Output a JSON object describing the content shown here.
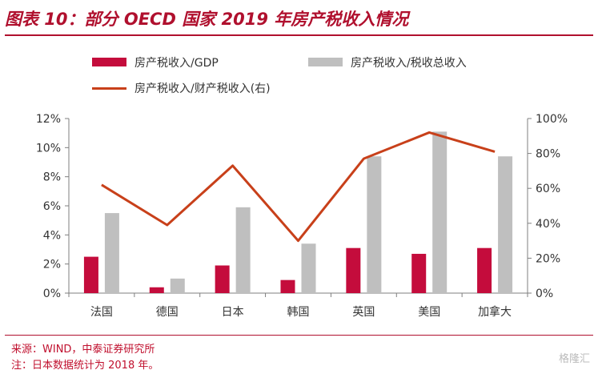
{
  "title": "图表 10：部分 OECD 国家 2019 年房产税收入情况",
  "legend": {
    "series_gdp": "房产税收入/GDP",
    "series_tax": "房产税收入/税收总收入",
    "series_fiscal": "房产税收入/财产税收入(右)"
  },
  "source": {
    "line1": "来源：WIND，中泰证券研究所",
    "line2": "注：日本数据统计为 2018 年。"
  },
  "watermark": "格隆汇",
  "colors": {
    "accent": "#b0102e",
    "bar_gdp": "#c40c3c",
    "bar_tax": "#bfbfbf",
    "line": "#c8401a"
  },
  "chart_data": {
    "type": "bar",
    "categories": [
      "法国",
      "德国",
      "日本",
      "韩国",
      "英国",
      "美国",
      "加拿大"
    ],
    "series": [
      {
        "name": "房产税收入/GDP",
        "type": "bar",
        "axis": "left",
        "values": [
          2.5,
          0.4,
          1.9,
          0.9,
          3.1,
          2.7,
          3.1
        ]
      },
      {
        "name": "房产税收入/税收总收入",
        "type": "bar",
        "axis": "left",
        "values": [
          5.5,
          1.0,
          5.9,
          3.4,
          9.4,
          11.1,
          9.4
        ]
      },
      {
        "name": "房产税收入/财产税收入(右)",
        "type": "line",
        "axis": "right",
        "values": [
          62,
          39,
          73,
          30,
          77,
          92,
          81
        ]
      }
    ],
    "y_left": {
      "min": 0,
      "max": 12,
      "ticks": [
        "0%",
        "2%",
        "4%",
        "6%",
        "8%",
        "10%",
        "12%"
      ]
    },
    "y_right": {
      "min": 0,
      "max": 100,
      "ticks": [
        "0%",
        "20%",
        "40%",
        "60%",
        "80%",
        "100%"
      ]
    }
  }
}
